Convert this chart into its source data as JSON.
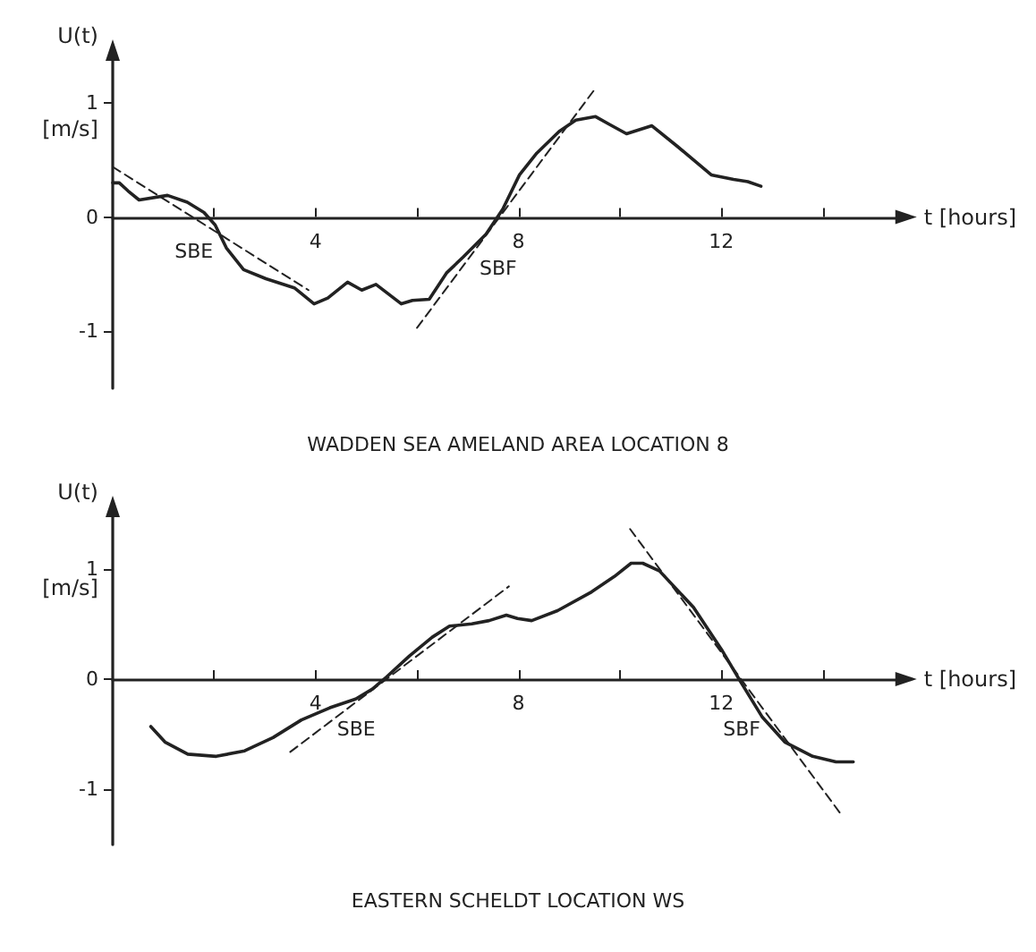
{
  "chart_data": [
    {
      "type": "line",
      "title": "WADDEN SEA AMELAND AREA LOCATION 8",
      "xlabel": "t [hours]",
      "ylabel": "U(t)",
      "xlim": [
        0,
        15.5
      ],
      "ylim": [
        -1.5,
        1.4
      ],
      "xticks": [
        {
          "value": 2,
          "label": null
        },
        4,
        {
          "value": 6,
          "label": null
        },
        8,
        {
          "value": 10,
          "label": null
        },
        12,
        {
          "value": 14,
          "label": null
        }
      ],
      "yticks": [
        -1,
        0,
        1
      ],
      "grid": false,
      "marker": "none",
      "annotations": [
        "[m/s]",
        {
          "text": "SBE",
          "x": 1.6,
          "y": -0.3
        },
        {
          "text": "SBF",
          "x": 7.6,
          "y": -0.45
        }
      ],
      "series": [
        {
          "color": "#222222",
          "line_style": "solid",
          "x": [
            0,
            0.13,
            0.3,
            0.52,
            1.08,
            1.47,
            1.8,
            2.02,
            2.24,
            2.58,
            3.02,
            3.58,
            3.97,
            4.24,
            4.63,
            4.91,
            5.19,
            5.69,
            5.91,
            6.24,
            6.58,
            6.91,
            7.36,
            7.69,
            8.02,
            8.36,
            8.8,
            9.13,
            9.52,
            9.8,
            10.13,
            10.63,
            11.13,
            11.8,
            12.24,
            12.52,
            12.78
          ],
          "values": [
            0.3,
            0.3,
            0.23,
            0.15,
            0.19,
            0.13,
            0.04,
            -0.07,
            -0.27,
            -0.46,
            -0.54,
            -0.62,
            -0.76,
            -0.71,
            -0.57,
            -0.64,
            -0.59,
            -0.76,
            -0.73,
            -0.72,
            -0.49,
            -0.35,
            -0.15,
            0.07,
            0.37,
            0.56,
            0.75,
            0.85,
            0.88,
            0.81,
            0.73,
            0.8,
            0.62,
            0.37,
            0.33,
            0.31,
            0.27
          ]
        },
        {
          "color": "#222222",
          "line_style": "dashed",
          "x": [
            0,
            3.86
          ],
          "values": [
            0.44,
            -0.64
          ]
        },
        {
          "color": "#222222",
          "line_style": "dashed",
          "x": [
            6.0,
            9.52
          ],
          "values": [
            -0.97,
            1.13
          ]
        }
      ]
    },
    {
      "type": "line",
      "title": "EASTERN SCHELDT LOCATION WS",
      "xlabel": "t [hours]",
      "ylabel": "U(t)",
      "xlim": [
        0,
        15.5
      ],
      "ylim": [
        -1.5,
        1.5
      ],
      "xticks": [
        {
          "value": 2,
          "label": null
        },
        4,
        {
          "value": 6,
          "label": null
        },
        8,
        {
          "value": 10,
          "label": null
        },
        12,
        {
          "value": 14,
          "label": null
        }
      ],
      "yticks": [
        -1,
        0,
        1
      ],
      "grid": false,
      "marker": "none",
      "annotations": [
        "[m/s]",
        {
          "text": "SBE",
          "x": 4.8,
          "y": -0.45
        },
        {
          "text": "SBF",
          "x": 12.4,
          "y": -0.45
        }
      ],
      "series": [
        {
          "color": "#222222",
          "line_style": "solid",
          "x": [
            0.75,
            1.03,
            1.48,
            2.04,
            2.6,
            3.16,
            3.72,
            4.28,
            4.79,
            5.12,
            5.4,
            5.85,
            6.3,
            6.64,
            7.08,
            7.42,
            7.76,
            7.98,
            8.26,
            8.77,
            9.44,
            9.89,
            10.22,
            10.45,
            10.78,
            11.45,
            12.0,
            12.4,
            12.8,
            13.25,
            13.8,
            14.26,
            14.6
          ],
          "values": [
            -0.43,
            -0.57,
            -0.68,
            -0.7,
            -0.65,
            -0.53,
            -0.37,
            -0.26,
            -0.18,
            -0.09,
            0.02,
            0.21,
            0.38,
            0.48,
            0.5,
            0.53,
            0.58,
            0.55,
            0.53,
            0.62,
            0.79,
            0.93,
            1.05,
            1.05,
            0.98,
            0.65,
            0.27,
            -0.04,
            -0.34,
            -0.57,
            -0.7,
            -0.75,
            -0.75
          ]
        },
        {
          "color": "#222222",
          "line_style": "dashed",
          "x": [
            3.5,
            7.81
          ],
          "values": [
            -0.66,
            0.84
          ]
        },
        {
          "color": "#222222",
          "line_style": "dashed",
          "x": [
            10.2,
            14.35
          ],
          "values": [
            1.36,
            -1.22
          ]
        }
      ]
    }
  ]
}
